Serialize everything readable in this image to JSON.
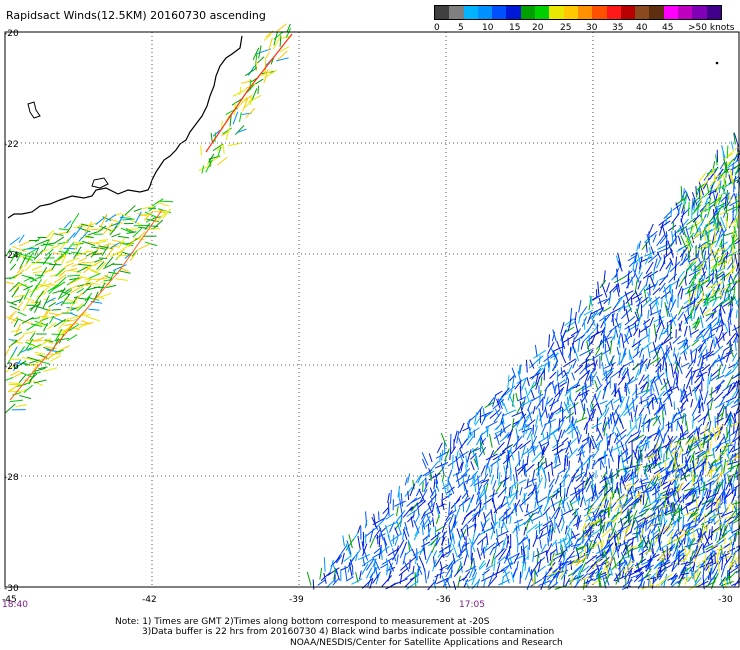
{
  "title": "Rapidsact Winds(12.5KM) 20160730 ascending",
  "legend": {
    "colors": [
      "#404040",
      "#7f7f7f",
      "#00b4ff",
      "#0090ff",
      "#0050ff",
      "#0018d8",
      "#00a000",
      "#00d000",
      "#e8e800",
      "#ffc800",
      "#ff9000",
      "#ff5000",
      "#ff1818",
      "#b80000",
      "#8a4a20",
      "#5e2e10",
      "#ff00ff",
      "#c000c0",
      "#8000b8",
      "#40008a"
    ],
    "labels": [
      "0",
      "5",
      "10",
      "15",
      "20",
      "25",
      "30",
      "35",
      "40",
      "45",
      ">50 knots"
    ]
  },
  "map": {
    "lat_labels": [
      "-20",
      "-22",
      "-24",
      "-26",
      "-28",
      "-30"
    ],
    "lon_labels": [
      "-45",
      "-42",
      "-39",
      "-36",
      "-33",
      "-30"
    ],
    "times": [
      {
        "label": "18:40"
      },
      {
        "label": "17:05"
      }
    ]
  },
  "notes": {
    "line1": "Note: 1) Times are GMT 2)Times along bottom correspond to measurement at -20S",
    "line2": "3)Data buffer is 22 hrs from 20160730 4) Black wind barbs indicate possible contamination",
    "line3": "NOAA/NESDIS/Center for Satellite Applications and Research"
  }
}
